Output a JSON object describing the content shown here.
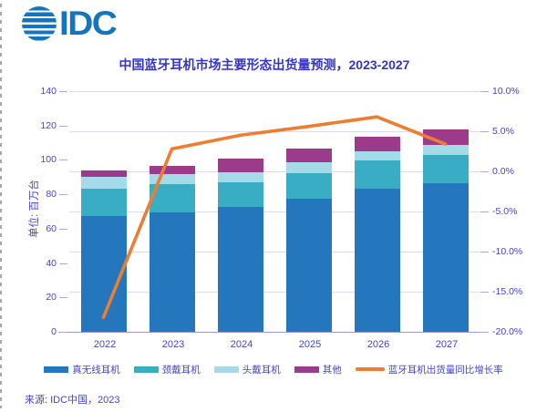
{
  "page": {
    "logo_text": "IDC"
  },
  "header": {
    "title": "中国蓝牙耳机市场主要形态出货量预测，2023-2027"
  },
  "chart_data": {
    "type": "stacked-bar-line-combo",
    "title": "中国蓝牙耳机市场主要形态出货量预测，2023-2027",
    "categories": [
      "2022",
      "2023",
      "2024",
      "2025",
      "2026",
      "2027"
    ],
    "series": [
      {
        "key": "tws",
        "name": "真无线耳机",
        "color": "#2477BD",
        "values": [
          67.5,
          69.5,
          72.5,
          77.5,
          83.5,
          86.5
        ]
      },
      {
        "key": "neckband",
        "name": "颈戴耳机",
        "color": "#39ADC4",
        "values": [
          15.5,
          16.5,
          14.5,
          15.0,
          16.0,
          16.5
        ]
      },
      {
        "key": "over-ear",
        "name": "头戴耳机",
        "color": "#A5DBE8",
        "values": [
          7.0,
          5.5,
          6.0,
          6.0,
          5.5,
          5.5
        ]
      },
      {
        "key": "other",
        "name": "其他",
        "color": "#9C3A8C",
        "values": [
          4.0,
          5.0,
          8.0,
          8.0,
          8.5,
          9.0
        ]
      }
    ],
    "line_series": {
      "key": "yoy-growth",
      "name": "蓝牙耳机出货量同比增长率",
      "color": "#ED7D31",
      "unit": "%",
      "axis": "right",
      "values": [
        -18.2,
        2.8,
        4.5,
        5.6,
        6.8,
        3.4
      ]
    },
    "left_axis": {
      "label": "单位: 百万台",
      "min": 0,
      "max": 140,
      "ticks": [
        0,
        20,
        40,
        60,
        80,
        100,
        120,
        140
      ]
    },
    "right_axis": {
      "min": -20,
      "max": 10,
      "tick_labels": [
        "10.0%",
        "5.0%",
        "0.0%",
        "-5.0%",
        "-10.0%",
        "-15.0%",
        "-20.0%"
      ]
    },
    "grid": "horizontal",
    "legend_position": "bottom"
  },
  "footer": {
    "source": "来源: IDC中国，2023"
  }
}
